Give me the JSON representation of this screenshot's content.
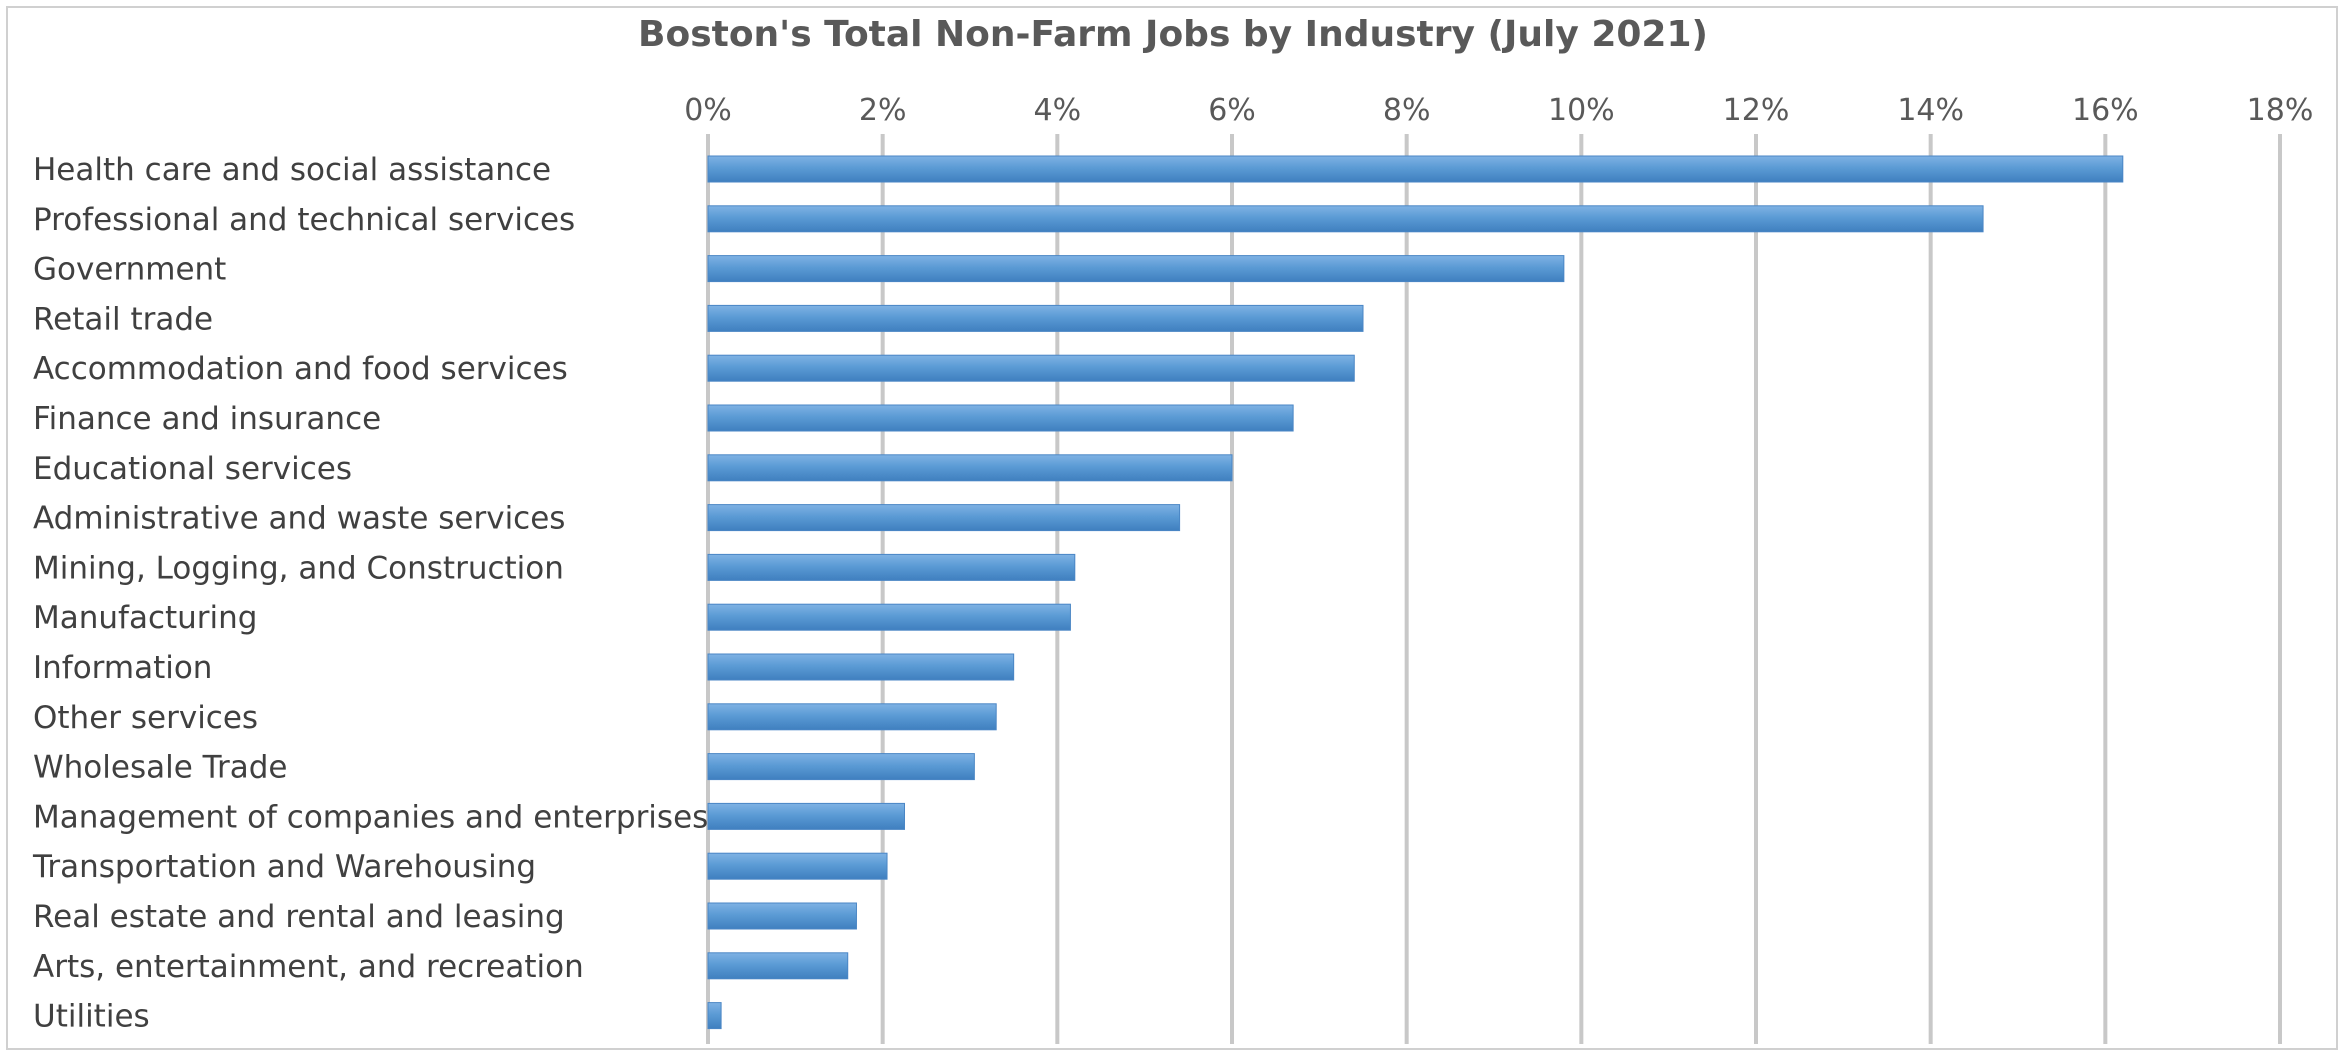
{
  "chart_data": {
    "type": "bar",
    "orientation": "horizontal",
    "title": "Boston's Total Non-Farm Jobs by Industry (July 2021)",
    "xlabel": "",
    "ylabel": "",
    "xlim": [
      0,
      18
    ],
    "x_ticks": [
      "0%",
      "2%",
      "4%",
      "6%",
      "8%",
      "10%",
      "12%",
      "14%",
      "16%",
      "18%"
    ],
    "x_axis_position": "top",
    "grid": true,
    "bar_color": "#5b9bd5",
    "gridline_color": "#c8c8c8",
    "categories": [
      "Health care and social assistance",
      "Professional and technical services",
      "Government",
      "Retail trade",
      "Accommodation and food services",
      "Finance and insurance",
      "Educational services",
      "Administrative and waste services",
      "Mining, Logging, and Construction",
      "Manufacturing",
      "Information",
      "Other services",
      "Wholesale Trade",
      "Management of companies and enterprises",
      "Transportation and Warehousing",
      "Real estate and rental and leasing",
      "Arts, entertainment, and recreation",
      "Utilities"
    ],
    "values": [
      16.2,
      14.6,
      9.8,
      7.5,
      7.4,
      6.7,
      6.0,
      5.4,
      4.2,
      4.15,
      3.5,
      3.3,
      3.05,
      2.25,
      2.05,
      1.7,
      1.6,
      0.15
    ]
  }
}
